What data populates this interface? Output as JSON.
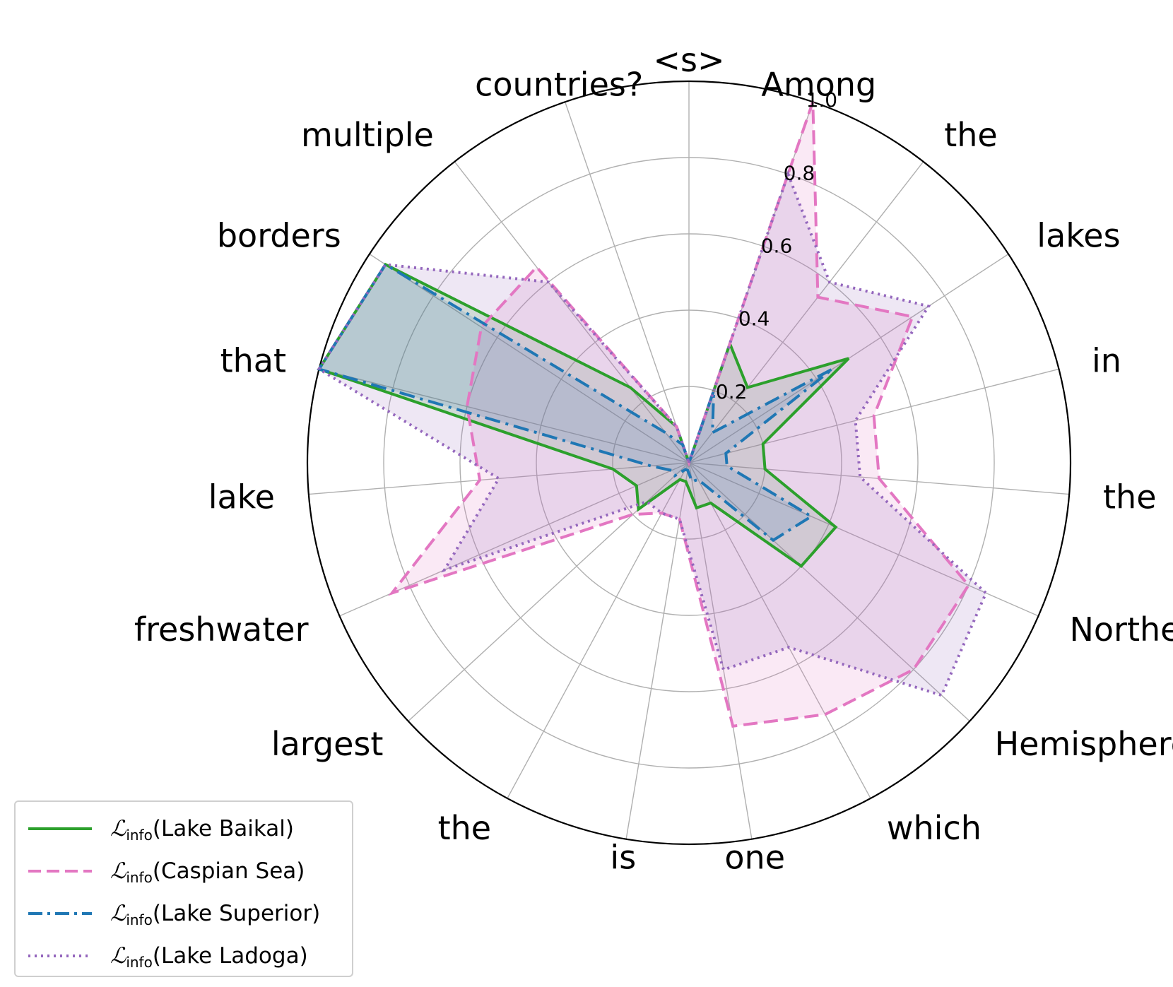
{
  "chart_data": {
    "type": "radar",
    "categories": [
      "<s>",
      "Among",
      "the",
      "lakes",
      "in",
      "the",
      "Northern",
      "Hemisphere,",
      "which",
      "one",
      "is",
      "the",
      "largest",
      "freshwater",
      "lake",
      "that",
      "borders",
      "multiple",
      "countries?"
    ],
    "rlim": [
      0,
      1.0
    ],
    "r_ticks": [
      0.2,
      0.4,
      0.6,
      0.8,
      1.0
    ],
    "grid": true,
    "legend_position": "lower-left",
    "series": [
      {
        "name": "Lake Baikal",
        "color": "#2ca02c",
        "linestyle": "solid",
        "values": [
          0.0,
          0.33,
          0.25,
          0.5,
          0.2,
          0.2,
          0.42,
          0.4,
          0.12,
          0.12,
          0.05,
          0.05,
          0.18,
          0.15,
          0.2,
          1.0,
          0.95,
          0.25,
          0.1
        ]
      },
      {
        "name": "Caspian Sea",
        "color": "#e377c2",
        "linestyle": "dashed",
        "values": [
          0.0,
          1.0,
          0.55,
          0.7,
          0.5,
          0.5,
          0.8,
          0.8,
          0.75,
          0.7,
          0.15,
          0.15,
          0.2,
          0.85,
          0.55,
          0.6,
          0.65,
          0.65,
          0.1
        ]
      },
      {
        "name": "Lake Superior",
        "color": "#1f77b4",
        "linestyle": "dashdot",
        "values": [
          0.0,
          0.2,
          0.1,
          0.45,
          0.1,
          0.1,
          0.35,
          0.3,
          0.05,
          0.05,
          0.02,
          0.02,
          0.05,
          0.05,
          0.1,
          1.0,
          0.95,
          0.1,
          0.05
        ]
      },
      {
        "name": "Lake Ladoga",
        "color": "#9467bd",
        "linestyle": "dotted",
        "values": [
          0.0,
          0.8,
          0.6,
          0.75,
          0.45,
          0.45,
          0.85,
          0.9,
          0.55,
          0.55,
          0.15,
          0.15,
          0.15,
          0.7,
          0.5,
          1.0,
          0.95,
          0.6,
          0.1
        ]
      }
    ]
  },
  "legend": {
    "prefix": "ℒ",
    "subscript": "info",
    "items": [
      "(Lake Baikal)",
      "(Caspian Sea)",
      "(Lake Superior)",
      "(Lake Ladoga)"
    ]
  }
}
